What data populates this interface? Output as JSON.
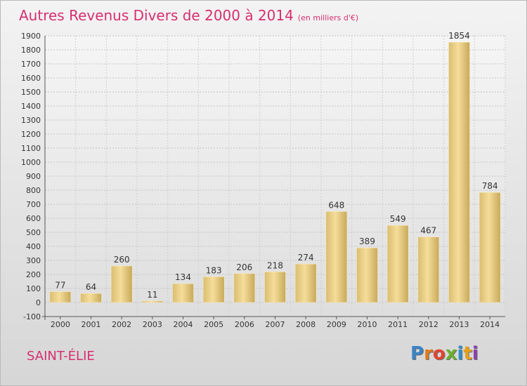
{
  "header": {
    "title": "Autres Revenus Divers de 2000 à 2014",
    "subtitle": "(en milliers d'€)"
  },
  "footer": {
    "place": "SAINT-ÉLIE"
  },
  "logo": {
    "letters": [
      {
        "ch": "P",
        "color": "#3c83c4"
      },
      {
        "ch": "r",
        "color": "#e07a1c"
      },
      {
        "ch": "o",
        "color": "#e24430"
      },
      {
        "ch": "x",
        "color": "#6bb02f"
      },
      {
        "ch": "i",
        "color": "#2f8ec8"
      },
      {
        "ch": "t",
        "color": "#e8a018"
      },
      {
        "ch": "i",
        "color": "#8a3fb0"
      }
    ]
  },
  "colors": {
    "accent": "#d62f6f",
    "bar_light": "#f6dc98",
    "bar_dark": "#cdb060"
  },
  "chart_data": {
    "type": "bar",
    "title": "Autres Revenus Divers de 2000 à 2014",
    "subtitle": "(en milliers d'€)",
    "categories": [
      "2000",
      "2001",
      "2002",
      "2003",
      "2004",
      "2005",
      "2006",
      "2007",
      "2008",
      "2009",
      "2010",
      "2011",
      "2012",
      "2013",
      "2014"
    ],
    "values": [
      77,
      64,
      260,
      11,
      134,
      183,
      206,
      218,
      274,
      648,
      389,
      549,
      467,
      1854,
      784
    ],
    "ylim": [
      -100,
      1900
    ],
    "yticks": [
      -100,
      0,
      100,
      200,
      300,
      400,
      500,
      600,
      700,
      800,
      900,
      1000,
      1100,
      1200,
      1300,
      1400,
      1500,
      1600,
      1700,
      1800,
      1900
    ],
    "grid": true,
    "xlabel": "",
    "ylabel": ""
  }
}
